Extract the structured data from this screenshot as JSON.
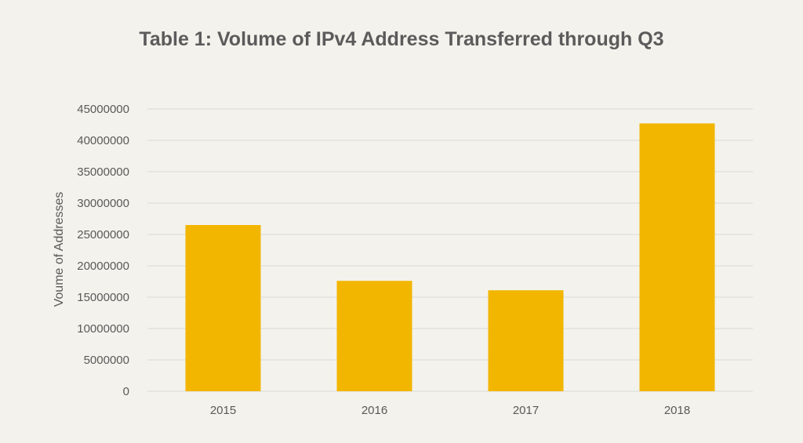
{
  "chart_data": {
    "type": "bar",
    "title": "Table 1: Volume of IPv4 Address Transferred through Q3",
    "xlabel": "",
    "ylabel": "Voume of Addresses",
    "categories": [
      "2015",
      "2016",
      "2017",
      "2018"
    ],
    "values": [
      26500000,
      17600000,
      16100000,
      42700000
    ],
    "ylim": [
      0,
      45000000
    ],
    "yticks": [
      0,
      5000000,
      10000000,
      15000000,
      20000000,
      25000000,
      30000000,
      35000000,
      40000000,
      45000000
    ],
    "ytick_labels": [
      "0",
      "5000000",
      "10000000",
      "15000000",
      "20000000",
      "25000000",
      "30000000",
      "35000000",
      "40000000",
      "45000000"
    ],
    "grid": true,
    "legend": "none",
    "colors": {
      "bar": "#f2b600",
      "grid": "#d9d9d9",
      "background": "#f3f2ec",
      "title": "#5b5b5b",
      "text": "#595959"
    }
  }
}
